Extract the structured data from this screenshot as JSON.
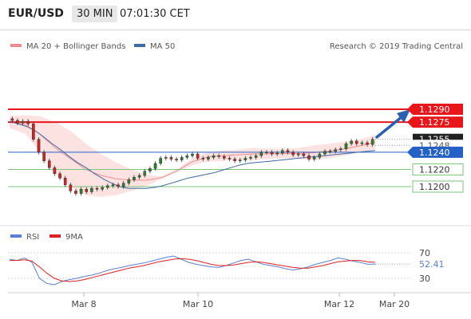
{
  "header": {
    "pair": "EUR/USD",
    "timeframe": "30 MIN",
    "time": "07:01:30 CET"
  },
  "watermark": "Research © 2019 Trading Central",
  "legend": {
    "bb": "MA 20 + Bollinger Bands",
    "ma50": "MA 50",
    "rsi": "RSI",
    "ma9": "9MA"
  },
  "colors": {
    "resistance": "#e8151b",
    "support": "#7cc47a",
    "pivot": "#2560c7",
    "price": "#222222",
    "candle_up": "#2e7d32",
    "candle_down": "#c62828",
    "bb_fill": "#fde2e2",
    "ma20": "#f28b8b",
    "ma50": "#3d6aa8",
    "rsi": "#5b7fd6",
    "rsi_ma": "#e02020",
    "arrow": "#2d5fb0"
  },
  "chart_data": [
    {
      "type": "candlestick",
      "title": "",
      "x_ticks": [
        "Mar 8",
        "Mar 10",
        "Mar 12",
        "Mar 20"
      ],
      "levels": [
        {
          "label": "1.1290",
          "value": 1.129,
          "kind": "resistance"
        },
        {
          "label": "1.1275",
          "value": 1.1275,
          "kind": "resistance"
        },
        {
          "label": "1.1255",
          "value": 1.1255,
          "kind": "last"
        },
        {
          "label": "1.1248",
          "value": 1.1248,
          "kind": "dotted"
        },
        {
          "label": "1.1240",
          "value": 1.124,
          "kind": "pivot"
        },
        {
          "label": "1.1220",
          "value": 1.122,
          "kind": "support"
        },
        {
          "label": "1.1200",
          "value": 1.12,
          "kind": "support"
        }
      ],
      "price_series": [
        1.1277,
        1.1274,
        1.1276,
        1.1273,
        1.1255,
        1.124,
        1.123,
        1.1222,
        1.1215,
        1.121,
        1.1202,
        1.1195,
        1.1192,
        1.1197,
        1.1194,
        1.1198,
        1.1197,
        1.1199,
        1.1201,
        1.1202,
        1.12,
        1.1204,
        1.1208,
        1.1211,
        1.1213,
        1.1218,
        1.1221,
        1.1227,
        1.1233,
        1.1234,
        1.1232,
        1.1231,
        1.1234,
        1.1236,
        1.1238,
        1.1233,
        1.1232,
        1.1234,
        1.1236,
        1.1235,
        1.1233,
        1.1232,
        1.123,
        1.1231,
        1.1233,
        1.1234,
        1.1236,
        1.124,
        1.124,
        1.1238,
        1.1239,
        1.1242,
        1.124,
        1.1237,
        1.1238,
        1.1236,
        1.1232,
        1.1234,
        1.1238,
        1.1241,
        1.1241,
        1.1243,
        1.1244,
        1.125,
        1.1253,
        1.125,
        1.1251,
        1.1249,
        1.1255
      ],
      "ma50": [
        1.1276,
        1.1273,
        1.127,
        1.1265,
        1.1258,
        1.125,
        1.1243,
        1.1235,
        1.1228,
        1.1222,
        1.1215,
        1.1209,
        1.1204,
        1.12,
        1.1198,
        1.1198,
        1.1198,
        1.1199,
        1.1201,
        1.1204,
        1.1207,
        1.121,
        1.1212,
        1.1214,
        1.1216,
        1.1219,
        1.1222,
        1.1225,
        1.1227,
        1.1228,
        1.1229,
        1.123,
        1.1231,
        1.1232,
        1.1233,
        1.1234,
        1.1235,
        1.1236,
        1.1237,
        1.1238,
        1.1239,
        1.124,
        1.1241,
        1.1242
      ],
      "bb_upper": [
        1.1282,
        1.1283,
        1.1282,
        1.1275,
        1.1265,
        1.125,
        1.1238,
        1.1228,
        1.122,
        1.1214,
        1.1212,
        1.122,
        1.1233,
        1.124,
        1.1242,
        1.1243,
        1.1245,
        1.1244,
        1.1244,
        1.1245,
        1.1248,
        1.125,
        1.1252,
        1.1255,
        1.126
      ],
      "bb_lower": [
        1.1268,
        1.1262,
        1.124,
        1.1215,
        1.12,
        1.119,
        1.1188,
        1.119,
        1.1195,
        1.1201,
        1.1209,
        1.1217,
        1.1225,
        1.1229,
        1.123,
        1.1231,
        1.1231,
        1.1232,
        1.1233,
        1.1232,
        1.1231,
        1.1233,
        1.1236,
        1.124,
        1.1243
      ]
    },
    {
      "type": "line",
      "title": "",
      "levels": [
        {
          "label": "70",
          "value": 70
        },
        {
          "label": "52.41",
          "value": 52.41,
          "kind": "current"
        },
        {
          "label": "30",
          "value": 30
        }
      ],
      "series": [
        {
          "name": "RSI",
          "values": [
            60,
            58,
            62,
            55,
            30,
            22,
            20,
            25,
            28,
            30,
            33,
            35,
            38,
            42,
            45,
            47,
            50,
            52,
            54,
            57,
            60,
            63,
            65,
            60,
            55,
            52,
            50,
            48,
            47,
            50,
            54,
            58,
            60,
            56,
            52,
            50,
            48,
            45,
            43,
            45,
            48,
            52,
            55,
            58,
            62,
            60,
            57,
            55,
            52,
            52.41
          ]
        },
        {
          "name": "9MA",
          "values": [
            58,
            58,
            59,
            57,
            48,
            38,
            30,
            26,
            25,
            26,
            28,
            31,
            34,
            37,
            40,
            43,
            46,
            48,
            50,
            53,
            56,
            58,
            60,
            61,
            60,
            58,
            55,
            52,
            50,
            50,
            51,
            53,
            55,
            56,
            55,
            53,
            51,
            49,
            47,
            46,
            46,
            48,
            50,
            53,
            56,
            57,
            58,
            58,
            56,
            55
          ]
        }
      ]
    }
  ]
}
